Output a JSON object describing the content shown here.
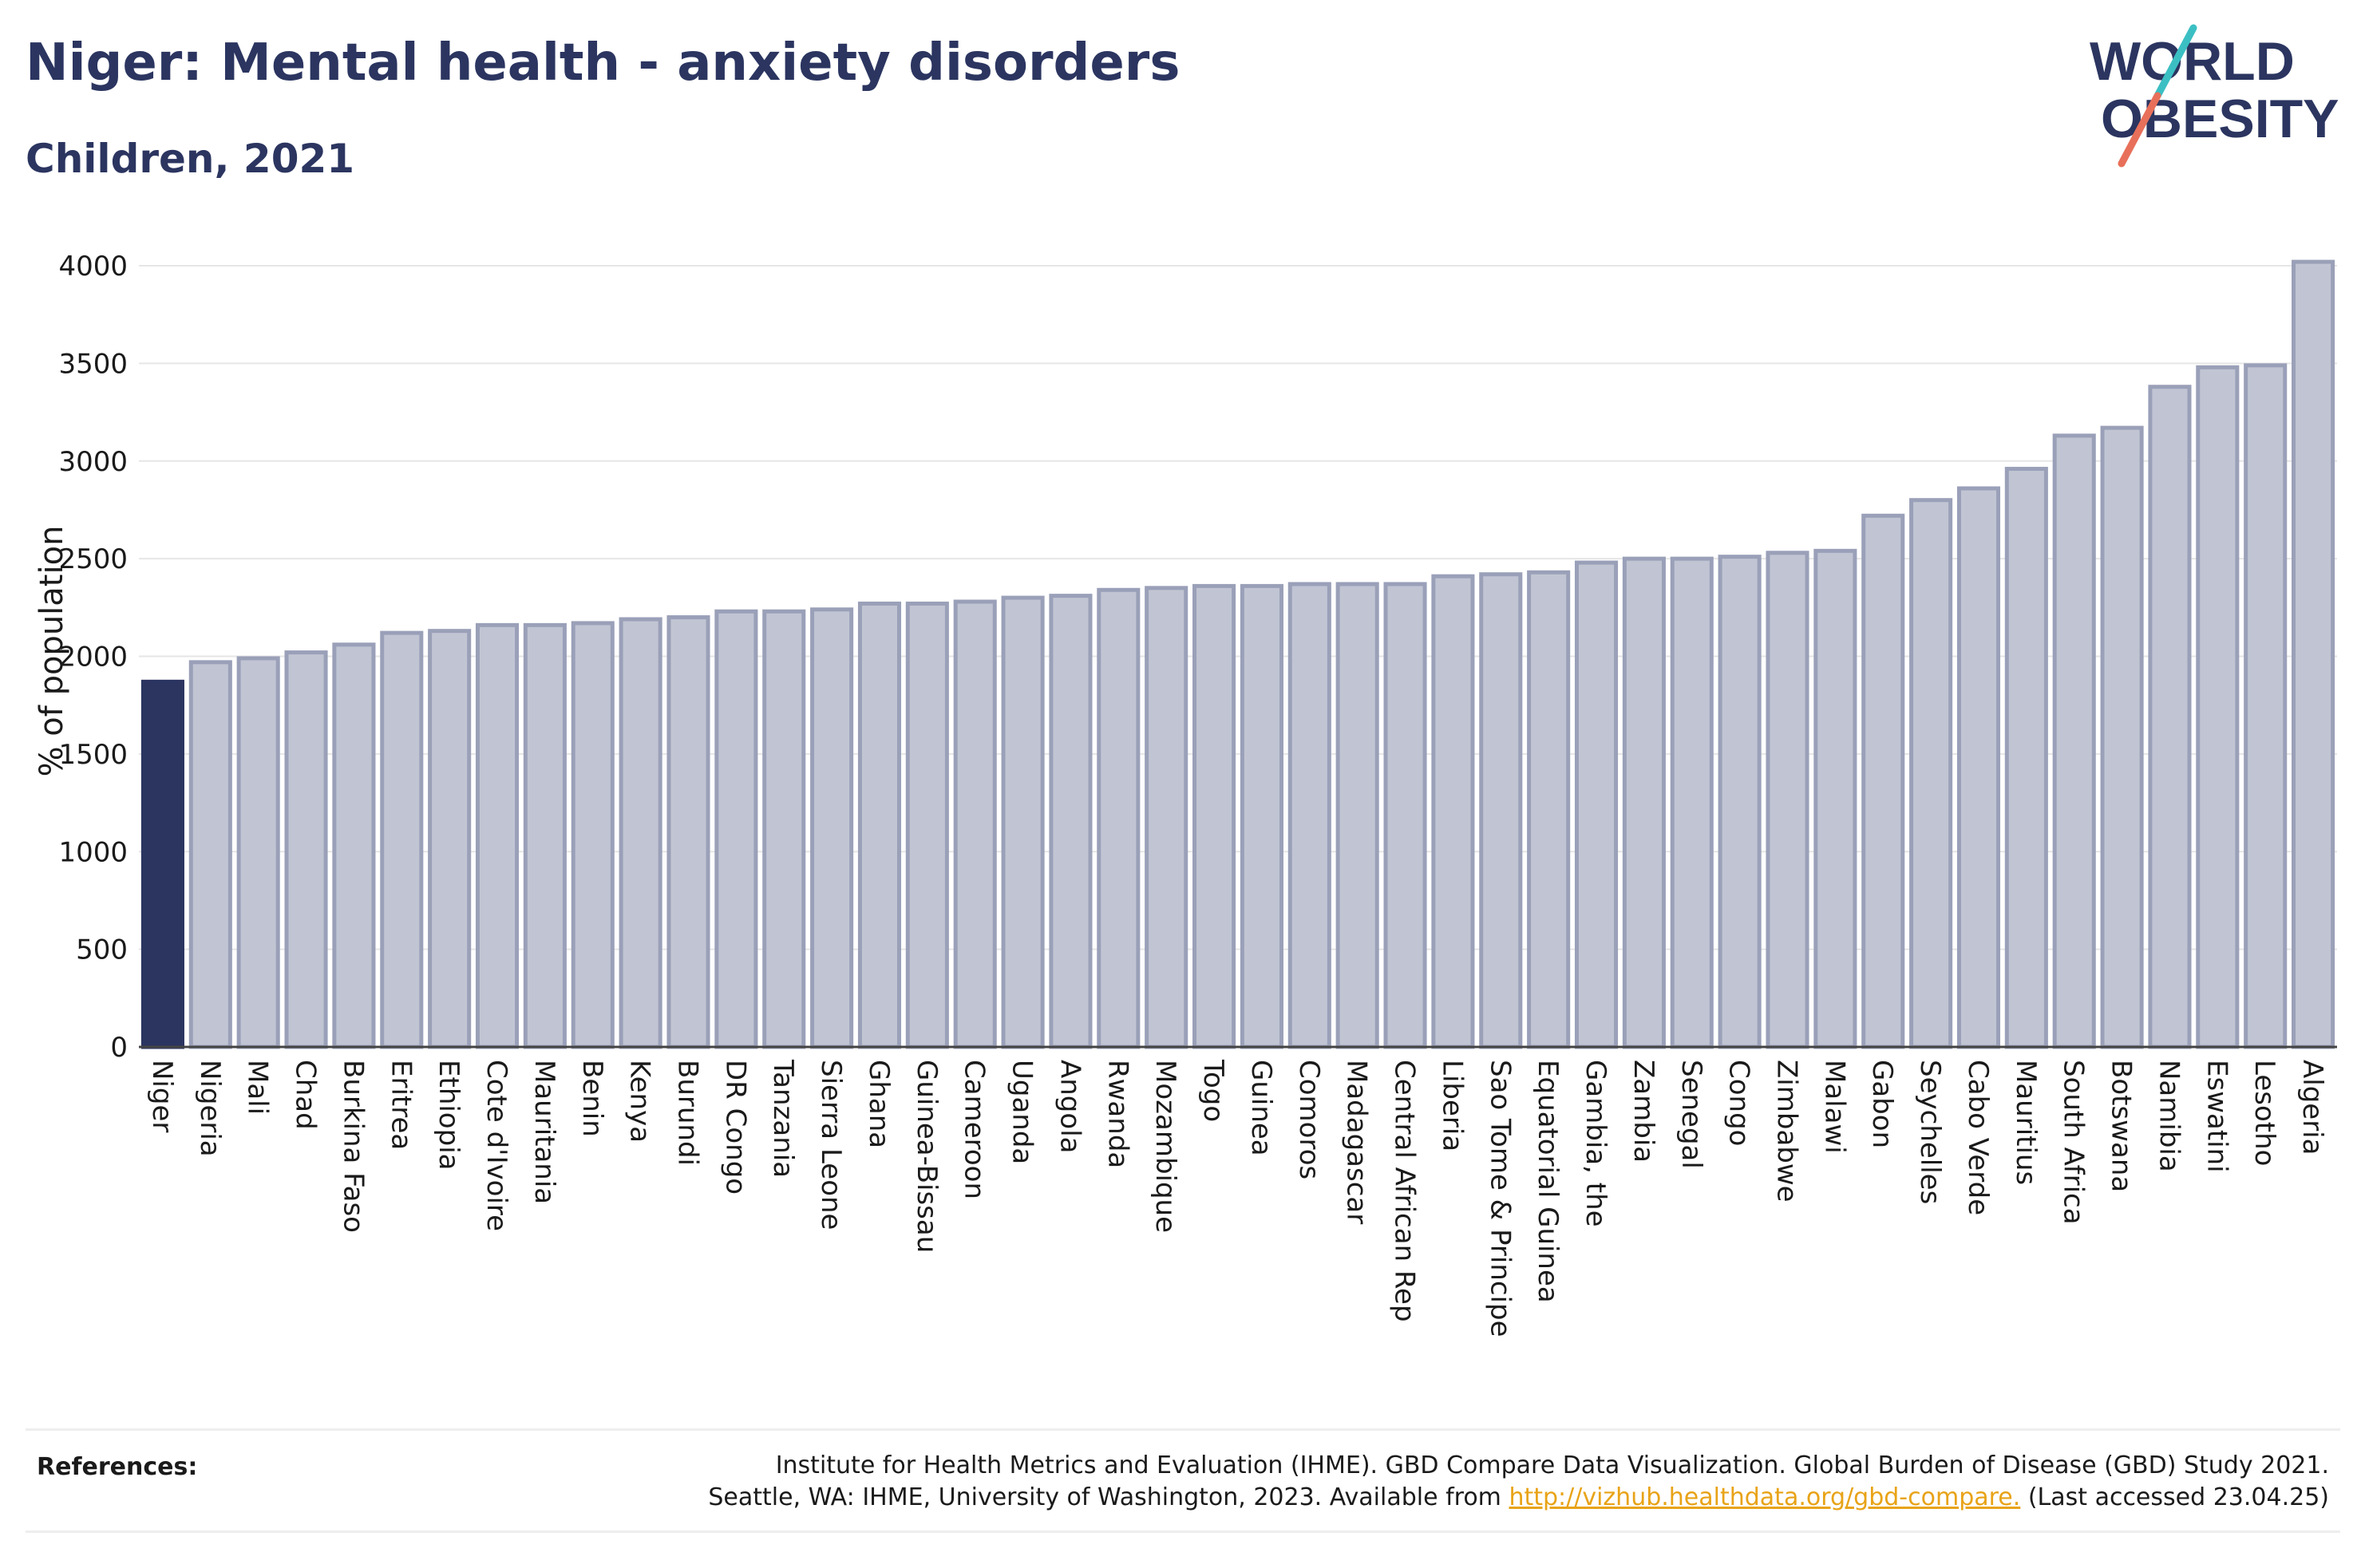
{
  "header": {
    "title": "Niger: Mental health - anxiety disorders",
    "subtitle": "Children, 2021"
  },
  "logo": {
    "line1": "WORLD",
    "line2": "OBESITY",
    "accent_teal": "#3bbfc3",
    "accent_coral": "#e8705a",
    "text_color": "#2b3560"
  },
  "references": {
    "label": "References:",
    "line1": "Institute for Health Metrics and Evaluation (IHME). GBD Compare Data Visualization. Global Burden of Disease (GBD) Study 2021.",
    "line2_prefix": "Seattle, WA: IHME, University of Washington, 2023. Available from ",
    "link": "http://vizhub.healthdata.org/gbd-compare.",
    "line2_suffix": " (Last accessed 23.04.25)"
  },
  "chart_data": {
    "type": "bar",
    "ylabel": "% of population",
    "ylim": [
      0,
      4200
    ],
    "yticks": [
      0,
      500,
      1000,
      1500,
      2000,
      2500,
      3000,
      3500,
      4000
    ],
    "grid": true,
    "highlight_category": "Niger",
    "colors": {
      "highlight": "#2b3560",
      "bar_fill": "#c1c5d3",
      "bar_stroke": "#9aa0b8"
    },
    "categories": [
      "Niger",
      "Nigeria",
      "Mali",
      "Chad",
      "Burkina Faso",
      "Eritrea",
      "Ethiopia",
      "Cote d'Ivoire",
      "Mauritania",
      "Benin",
      "Kenya",
      "Burundi",
      "DR Congo",
      "Tanzania",
      "Sierra Leone",
      "Ghana",
      "Guinea-Bissau",
      "Cameroon",
      "Uganda",
      "Angola",
      "Rwanda",
      "Mozambique",
      "Togo",
      "Guinea",
      "Comoros",
      "Madagascar",
      "Central African Rep",
      "Liberia",
      "Sao Tome & Principe",
      "Equatorial Guinea",
      "Gambia, the",
      "Zambia",
      "Senegal",
      "Congo",
      "Zimbabwe",
      "Malawi",
      "Gabon",
      "Seychelles",
      "Cabo Verde",
      "Mauritius",
      "South Africa",
      "Botswana",
      "Namibia",
      "Eswatini",
      "Lesotho",
      "Algeria"
    ],
    "values": [
      1870,
      1970,
      1990,
      2020,
      2060,
      2120,
      2130,
      2160,
      2160,
      2170,
      2190,
      2200,
      2230,
      2230,
      2240,
      2270,
      2270,
      2280,
      2300,
      2310,
      2340,
      2350,
      2360,
      2360,
      2370,
      2370,
      2370,
      2410,
      2420,
      2430,
      2480,
      2500,
      2500,
      2510,
      2530,
      2540,
      2720,
      2800,
      2860,
      2960,
      3130,
      3170,
      3380,
      3480,
      3490,
      4020
    ]
  }
}
